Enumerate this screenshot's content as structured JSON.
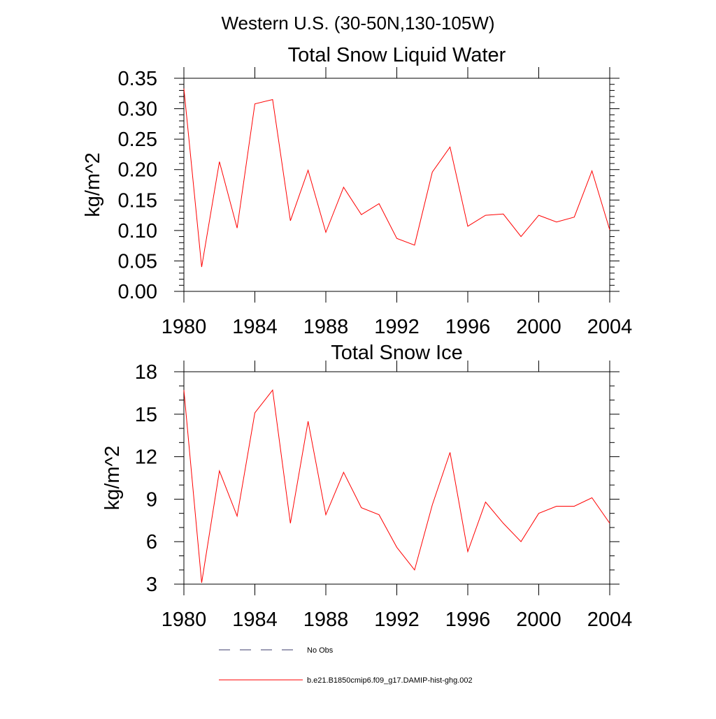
{
  "figure": {
    "main_title": "Western U.S. (30-50N,130-105W)"
  },
  "chart_data": [
    {
      "type": "line",
      "title": "Total Snow Liquid Water",
      "xlabel": "",
      "ylabel": "kg/m^2",
      "xlim": [
        1980,
        2004
      ],
      "ylim": [
        0.0,
        0.35
      ],
      "x_ticks": [
        1980,
        1984,
        1988,
        1992,
        1996,
        2000,
        2004
      ],
      "x_tick_labels": [
        "1980",
        "1984",
        "1988",
        "1992",
        "1996",
        "2000",
        "2004"
      ],
      "y_ticks": [
        0.0,
        0.05,
        0.1,
        0.15,
        0.2,
        0.25,
        0.3,
        0.35
      ],
      "y_tick_labels": [
        "0.00",
        "0.05",
        "0.10",
        "0.15",
        "0.20",
        "0.25",
        "0.30",
        "0.35"
      ],
      "grid": false,
      "series": [
        {
          "name": "b.e21.B1850cmip6.f09_g17.DAMIP-hist-ghg.002",
          "color": "#ff0000",
          "x": [
            1980,
            1981,
            1982,
            1983,
            1984,
            1985,
            1986,
            1987,
            1988,
            1989,
            1990,
            1991,
            1992,
            1993,
            1994,
            1995,
            1996,
            1997,
            1998,
            1999,
            2000,
            2001,
            2002,
            2003,
            2004
          ],
          "values": [
            0.333,
            0.04,
            0.213,
            0.104,
            0.308,
            0.315,
            0.116,
            0.199,
            0.097,
            0.171,
            0.126,
            0.144,
            0.087,
            0.076,
            0.196,
            0.237,
            0.107,
            0.125,
            0.127,
            0.09,
            0.125,
            0.114,
            0.122,
            0.198,
            0.101
          ]
        }
      ]
    },
    {
      "type": "line",
      "title": "Total Snow Ice",
      "xlabel": "",
      "ylabel": "kg/m^2",
      "xlim": [
        1980,
        2004
      ],
      "ylim": [
        3,
        18
      ],
      "x_ticks": [
        1980,
        1984,
        1988,
        1992,
        1996,
        2000,
        2004
      ],
      "x_tick_labels": [
        "1980",
        "1984",
        "1988",
        "1992",
        "1996",
        "2000",
        "2004"
      ],
      "y_ticks": [
        3,
        6,
        9,
        12,
        15,
        18
      ],
      "y_tick_labels": [
        "3",
        "6",
        "9",
        "12",
        "15",
        "18"
      ],
      "grid": false,
      "series": [
        {
          "name": "b.e21.B1850cmip6.f09_g17.DAMIP-hist-ghg.002",
          "color": "#ff0000",
          "x": [
            1980,
            1981,
            1982,
            1983,
            1984,
            1985,
            1986,
            1987,
            1988,
            1989,
            1990,
            1991,
            1992,
            1993,
            1994,
            1995,
            1996,
            1997,
            1998,
            1999,
            2000,
            2001,
            2002,
            2003,
            2004
          ],
          "values": [
            16.7,
            3.1,
            11.0,
            7.8,
            15.1,
            16.7,
            7.3,
            14.5,
            7.9,
            10.9,
            8.4,
            7.9,
            5.6,
            4.0,
            8.6,
            12.3,
            5.3,
            8.8,
            7.3,
            6.0,
            8.0,
            8.5,
            8.5,
            9.1,
            7.3
          ]
        }
      ]
    }
  ],
  "legend": {
    "placement": "bottom",
    "entries": [
      {
        "label": "No Obs",
        "color": "#3b3b6b",
        "style": "dashed"
      },
      {
        "label": "b.e21.B1850cmip6.f09_g17.DAMIP-hist-ghg.002",
        "color": "#ff0000",
        "style": "solid"
      }
    ]
  }
}
